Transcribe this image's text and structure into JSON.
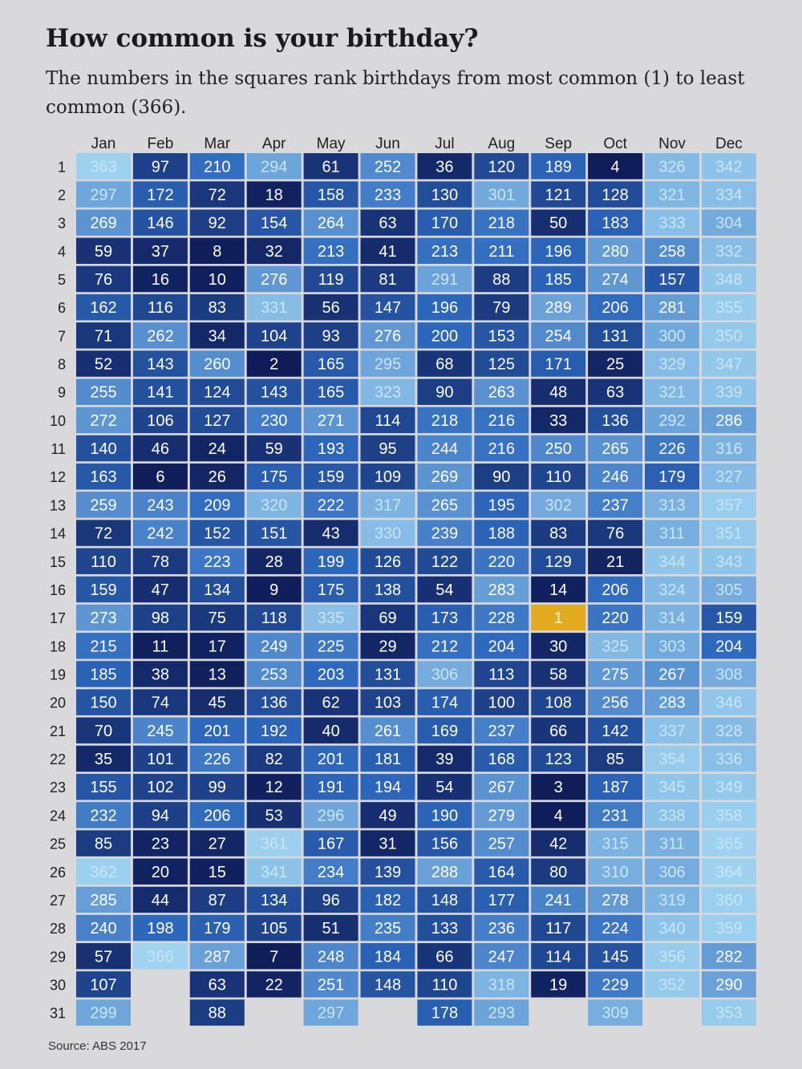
{
  "title": "How common is your birthday?",
  "subtitle": "The numbers in the squares rank birthdays from most common (1) to least common (366).",
  "source": "Source: ABS 2017",
  "chart_data": {
    "type": "heatmap",
    "value_meaning": "rank (1 = most common, 366 = least common)",
    "columns": [
      "Jan",
      "Feb",
      "Mar",
      "Apr",
      "May",
      "Jun",
      "Jul",
      "Aug",
      "Sep",
      "Oct",
      "Nov",
      "Dec"
    ],
    "rows": [
      "1",
      "2",
      "3",
      "4",
      "5",
      "6",
      "7",
      "8",
      "9",
      "10",
      "11",
      "12",
      "13",
      "14",
      "15",
      "16",
      "17",
      "18",
      "19",
      "20",
      "21",
      "22",
      "23",
      "24",
      "25",
      "26",
      "27",
      "28",
      "29",
      "30",
      "31"
    ],
    "values": [
      [
        363,
        297,
        269,
        59,
        76,
        162,
        71,
        52,
        255,
        272,
        140,
        163,
        259,
        72,
        110,
        159,
        273,
        215,
        185,
        150,
        70,
        35,
        155,
        232,
        85,
        362,
        285,
        240,
        57,
        107,
        299
      ],
      [
        97,
        172,
        146,
        37,
        16,
        116,
        262,
        143,
        141,
        106,
        46,
        6,
        243,
        242,
        78,
        47,
        98,
        11,
        38,
        74,
        245,
        101,
        102,
        94,
        23,
        20,
        44,
        198,
        366
      ],
      [
        210,
        72,
        92,
        8,
        10,
        83,
        34,
        260,
        124,
        127,
        24,
        26,
        209,
        152,
        223,
        134,
        75,
        17,
        13,
        45,
        201,
        226,
        99,
        206,
        27,
        15,
        87,
        179,
        287,
        63,
        88
      ],
      [
        294,
        18,
        154,
        32,
        276,
        331,
        104,
        2,
        143,
        230,
        59,
        175,
        320,
        151,
        28,
        9,
        118,
        249,
        253,
        136,
        192,
        82,
        12,
        53,
        361,
        341,
        134,
        105,
        7,
        22
      ],
      [
        61,
        158,
        264,
        213,
        119,
        56,
        93,
        165,
        165,
        271,
        193,
        159,
        222,
        43,
        199,
        175,
        335,
        225,
        203,
        62,
        40,
        201,
        191,
        296,
        167,
        234,
        96,
        51,
        248,
        251,
        297
      ],
      [
        252,
        233,
        63,
        41,
        81,
        147,
        276,
        295,
        323,
        114,
        95,
        109,
        317,
        330,
        126,
        138,
        69,
        29,
        131,
        103,
        261,
        181,
        194,
        49,
        31,
        139,
        182,
        235,
        184,
        148
      ],
      [
        36,
        130,
        170,
        213,
        291,
        196,
        200,
        68,
        90,
        218,
        244,
        269,
        265,
        239,
        122,
        54,
        173,
        212,
        306,
        174,
        169,
        39,
        54,
        190,
        156,
        288,
        148,
        133,
        66,
        110,
        178
      ],
      [
        120,
        301,
        218,
        211,
        88,
        79,
        153,
        125,
        263,
        216,
        216,
        90,
        195,
        188,
        220,
        283,
        228,
        204,
        113,
        100,
        237,
        168,
        267,
        279,
        257,
        164,
        177,
        236,
        247,
        318,
        293
      ],
      [
        189,
        121,
        50,
        196,
        185,
        289,
        254,
        171,
        48,
        33,
        250,
        110,
        302,
        83,
        129,
        14,
        1,
        30,
        58,
        108,
        66,
        123,
        3,
        4,
        42,
        80,
        241,
        117,
        114,
        19
      ],
      [
        4,
        128,
        183,
        280,
        274,
        206,
        131,
        25,
        63,
        136,
        265,
        246,
        237,
        76,
        21,
        206,
        220,
        325,
        275,
        256,
        142,
        85,
        187,
        231,
        315,
        310,
        278,
        224,
        145,
        229,
        309
      ],
      [
        326,
        321,
        333,
        258,
        157,
        281,
        300,
        329,
        321,
        292,
        226,
        179,
        313,
        311,
        344,
        324,
        314,
        303,
        267,
        283,
        337,
        354,
        345,
        338,
        311,
        306,
        319,
        340,
        356,
        352
      ],
      [
        342,
        334,
        304,
        332,
        348,
        355,
        350,
        347,
        339,
        286,
        316,
        327,
        357,
        351,
        343,
        305,
        159,
        204,
        308,
        346,
        328,
        336,
        349,
        358,
        365,
        364,
        360,
        359,
        282,
        290,
        353
      ]
    ],
    "highlight": {
      "month": "Sep",
      "day": "17",
      "rank": 1,
      "color": "#e3ab20"
    },
    "color_scale": {
      "low_rank": "#0f1c58",
      "mid_rank": "#2d68bd",
      "high_rank": "#9fd3f0"
    }
  }
}
